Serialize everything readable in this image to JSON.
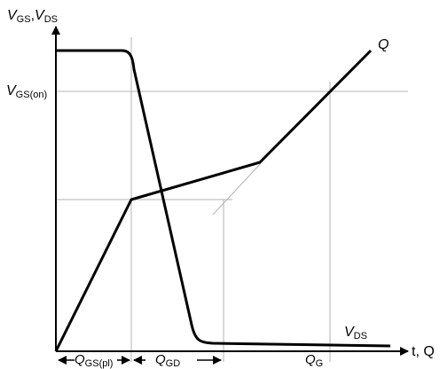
{
  "axes": {
    "y_label_main": "V",
    "y_label_sub_1": "GS",
    "y_label_sep": ",",
    "y_label_main_2": "V",
    "y_label_sub_2": "DS",
    "x_label": "t, Q"
  },
  "labels": {
    "vgs_on_main": "V",
    "vgs_on_sub": "GS(on)",
    "q_curve": "Q",
    "vds_curve_main": "V",
    "vds_curve_sub": "DS",
    "q_gs_main": "Q",
    "q_gs_sub": "GS(pl)",
    "q_gd_main": "Q",
    "q_gd_sub": "GD",
    "q_g_main": "Q",
    "q_g_sub": "G"
  },
  "colors": {
    "curve": "#000000",
    "guide": "#b3b3b3"
  }
}
